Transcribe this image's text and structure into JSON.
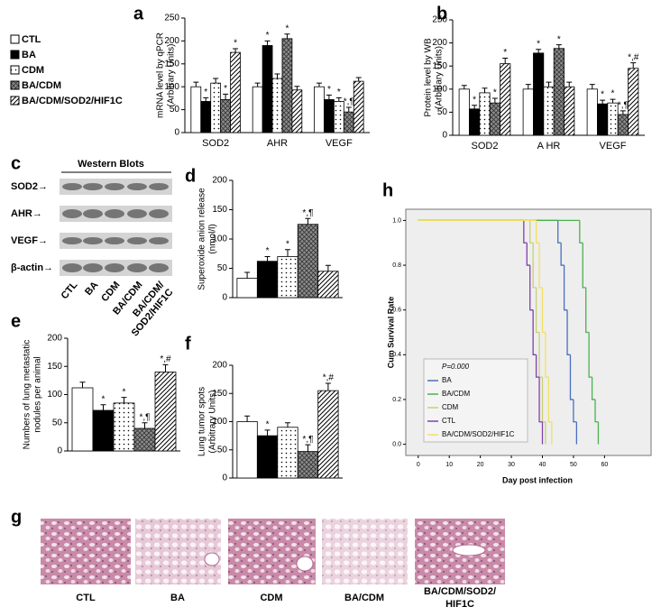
{
  "legend": [
    {
      "name": "CTL",
      "color": "#ffffff",
      "pattern": "solid"
    },
    {
      "name": "BA",
      "color": "#000000",
      "pattern": "solid"
    },
    {
      "name": "CDM",
      "color": "#ffffff",
      "pattern": "dots"
    },
    {
      "name": "BA/CDM",
      "color": "#8c8c8c",
      "pattern": "crosshatch"
    },
    {
      "name": "BA/CDM/SOD2/HIF1C",
      "color": "#ffffff",
      "pattern": "stripes"
    }
  ],
  "western_blot": {
    "panel": "c",
    "title": "Western Blots",
    "rows": [
      "SOD2→",
      "AHR→",
      "VEGF→",
      "β-actin→"
    ],
    "lanes": [
      "CTL",
      "BA",
      "CDM",
      "BA/CDM",
      [
        "BA/CDM/",
        "SOD2/HIF1C"
      ]
    ]
  },
  "histology": {
    "panel": "g",
    "labels": [
      "CTL",
      "BA",
      "CDM",
      "BA/CDM",
      [
        "BA/CDM/SOD2/",
        "HIF1C"
      ]
    ]
  },
  "chart_data": [
    {
      "panel": "a",
      "type": "bar",
      "y_label": [
        "mRNA level by qPCR",
        "(Arbitrary Units)"
      ],
      "categories": [
        "SOD2",
        "AHR",
        "VEGF"
      ],
      "ylim": [
        0,
        250
      ],
      "yticks": [
        0,
        50,
        100,
        150,
        200,
        250
      ],
      "series": [
        {
          "values": [
            100,
            100,
            100
          ],
          "errors": [
            10,
            8,
            8
          ],
          "labels": [
            null,
            null,
            null
          ]
        },
        {
          "values": [
            68,
            190,
            72
          ],
          "errors": [
            8,
            10,
            10
          ],
          "labels": [
            "*",
            "*",
            "*"
          ]
        },
        {
          "values": [
            108,
            118,
            68
          ],
          "errors": [
            10,
            10,
            8
          ],
          "labels": [
            null,
            null,
            "*"
          ]
        },
        {
          "values": [
            72,
            205,
            45
          ],
          "errors": [
            12,
            10,
            10
          ],
          "labels": [
            "*",
            "*",
            "*,¶"
          ]
        },
        {
          "values": [
            175,
            93,
            112
          ],
          "errors": [
            8,
            8,
            8
          ],
          "labels": [
            "*",
            null,
            null
          ]
        }
      ]
    },
    {
      "panel": "b",
      "type": "bar",
      "y_label": [
        "Protein level by WB",
        "(Arbitrary Units)"
      ],
      "categories": [
        "SOD2",
        "A HR",
        "VEGF"
      ],
      "ylim": [
        0,
        250
      ],
      "yticks": [
        0,
        50,
        100,
        150,
        200,
        250
      ],
      "series": [
        {
          "values": [
            100,
            100,
            100
          ],
          "errors": [
            8,
            10,
            10
          ],
          "labels": [
            null,
            null,
            null
          ]
        },
        {
          "values": [
            57,
            178,
            68
          ],
          "errors": [
            8,
            8,
            8
          ],
          "labels": [
            "*",
            "*",
            "*"
          ]
        },
        {
          "values": [
            92,
            105,
            70
          ],
          "errors": [
            10,
            10,
            8
          ],
          "labels": [
            null,
            null,
            "*"
          ]
        },
        {
          "values": [
            70,
            188,
            45
          ],
          "errors": [
            10,
            8,
            8
          ],
          "labels": [
            "*",
            "*",
            "*,¶"
          ]
        },
        {
          "values": [
            155,
            105,
            145
          ],
          "errors": [
            12,
            10,
            12
          ],
          "labels": [
            "*",
            null,
            "*,#"
          ]
        }
      ]
    },
    {
      "panel": "d",
      "type": "bar",
      "y_label": [
        "Superoxide anion release",
        "(nmol/l)"
      ],
      "categories": [
        null
      ],
      "ylim": [
        0,
        200
      ],
      "yticks": [
        0,
        50,
        100,
        150,
        200
      ],
      "series": [
        {
          "values": [
            33
          ],
          "errors": [
            10
          ],
          "labels": [
            null
          ]
        },
        {
          "values": [
            62
          ],
          "errors": [
            8
          ],
          "labels": [
            "*"
          ]
        },
        {
          "values": [
            70
          ],
          "errors": [
            12
          ],
          "labels": [
            "*"
          ]
        },
        {
          "values": [
            125
          ],
          "errors": [
            10
          ],
          "labels": [
            "*,¶"
          ]
        },
        {
          "values": [
            45
          ],
          "errors": [
            10
          ],
          "labels": [
            null
          ]
        }
      ]
    },
    {
      "panel": "e",
      "type": "bar",
      "y_label": [
        "Numbers of lung metastatic",
        "nodules per animal"
      ],
      "categories": [
        null
      ],
      "ylim": [
        0,
        200
      ],
      "yticks": [
        0,
        50,
        100,
        150,
        200
      ],
      "series": [
        {
          "values": [
            112
          ],
          "errors": [
            10
          ],
          "labels": [
            null
          ]
        },
        {
          "values": [
            72
          ],
          "errors": [
            10
          ],
          "labels": [
            "*"
          ]
        },
        {
          "values": [
            85
          ],
          "errors": [
            10
          ],
          "labels": [
            "*"
          ]
        },
        {
          "values": [
            40
          ],
          "errors": [
            10
          ],
          "labels": [
            "*,¶"
          ]
        },
        {
          "values": [
            140
          ],
          "errors": [
            13
          ],
          "labels": [
            "*,#"
          ]
        }
      ]
    },
    {
      "panel": "f",
      "type": "bar",
      "y_label": [
        "Lung tumor spots",
        "(Arbitrary Units)"
      ],
      "categories": [
        null
      ],
      "ylim": [
        0,
        200
      ],
      "yticks": [
        0,
        50,
        100,
        150,
        200
      ],
      "series": [
        {
          "values": [
            100
          ],
          "errors": [
            10
          ],
          "labels": [
            null
          ]
        },
        {
          "values": [
            75
          ],
          "errors": [
            10
          ],
          "labels": [
            "*"
          ]
        },
        {
          "values": [
            90
          ],
          "errors": [
            8
          ],
          "labels": [
            null
          ]
        },
        {
          "values": [
            47
          ],
          "errors": [
            12
          ],
          "labels": [
            "*,¶"
          ]
        },
        {
          "values": [
            155
          ],
          "errors": [
            13
          ],
          "labels": [
            "*,#"
          ]
        }
      ]
    },
    {
      "panel": "h",
      "type": "survival",
      "x_label": "Day post infection",
      "y_label": "Cum Survival Rate",
      "xlim": [
        -4,
        75
      ],
      "xticks": [
        0,
        10,
        20,
        30,
        40,
        50,
        60
      ],
      "ylim": [
        -0.05,
        1.05
      ],
      "yticks": [
        {
          "value": 0,
          "label": "0.0"
        },
        {
          "value": 0.2,
          "label": "0.2"
        },
        {
          "value": 0.4,
          "label": "0.4"
        },
        {
          "value": 0.6,
          "label": "0.6"
        },
        {
          "value": 0.8,
          "label": "0.8"
        },
        {
          "value": 1,
          "label": "1.0"
        }
      ],
      "legend_title": "P=0.000",
      "series": [
        {
          "name": "BA",
          "color": "#4a6fc0",
          "x": [
            0,
            45,
            46,
            47,
            48,
            49,
            50,
            51
          ],
          "values": [
            1,
            0.9,
            0.8,
            0.6,
            0.4,
            0.2,
            0.1,
            0
          ]
        },
        {
          "name": "BA/CDM",
          "color": "#4cb050",
          "x": [
            0,
            52,
            53,
            54,
            55,
            56,
            57,
            58
          ],
          "values": [
            1,
            0.9,
            0.7,
            0.5,
            0.3,
            0.2,
            0.1,
            0
          ]
        },
        {
          "name": "CDM",
          "color": "#c8d070",
          "x": [
            0,
            36,
            37,
            38,
            39,
            40,
            41
          ],
          "values": [
            1,
            0.9,
            0.7,
            0.5,
            0.3,
            0.1,
            0
          ]
        },
        {
          "name": "CTL",
          "color": "#8040b0",
          "x": [
            0,
            34,
            35,
            36,
            37,
            38,
            39,
            40
          ],
          "values": [
            1,
            0.9,
            0.8,
            0.6,
            0.4,
            0.3,
            0.1,
            0
          ]
        },
        {
          "name": "BA/CDM/SOD2/HIF1C",
          "color": "#f0e060",
          "x": [
            0,
            38,
            39,
            40,
            41,
            42,
            43
          ],
          "values": [
            1,
            0.9,
            0.7,
            0.5,
            0.3,
            0.1,
            0
          ]
        }
      ]
    }
  ]
}
